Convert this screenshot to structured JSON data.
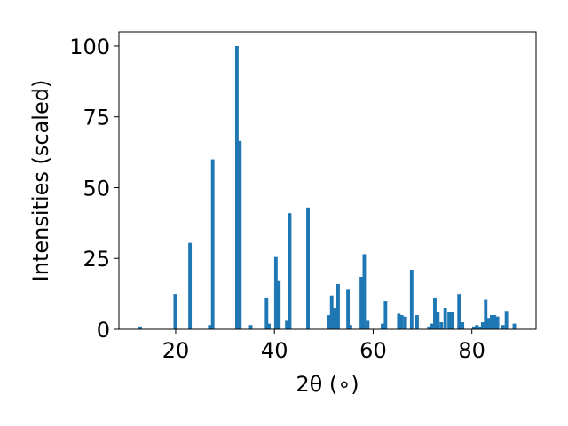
{
  "chart_data": {
    "type": "bar",
    "xlabel": "2θ (∘)",
    "ylabel": "Intensities (scaled)",
    "xlim": [
      8.5,
      93.0
    ],
    "ylim": [
      0,
      105
    ],
    "xticks": [
      20,
      40,
      60,
      80
    ],
    "yticks": [
      0,
      25,
      50,
      75,
      100
    ],
    "bar_width": 0.7,
    "color": "#1f77b4",
    "grid": false,
    "x": [
      12.8,
      19.9,
      22.9,
      26.9,
      27.5,
      32.4,
      33.0,
      35.2,
      38.4,
      38.9,
      40.3,
      40.9,
      42.5,
      43.1,
      46.8,
      51.0,
      51.6,
      52.2,
      52.9,
      54.9,
      55.4,
      57.6,
      58.2,
      58.9,
      61.9,
      62.5,
      65.2,
      65.8,
      66.5,
      67.8,
      68.9,
      71.3,
      71.9,
      72.5,
      73.1,
      73.8,
      74.6,
      75.4,
      76.0,
      77.4,
      78.1,
      80.4,
      81.0,
      81.6,
      82.2,
      82.8,
      83.4,
      84.0,
      84.6,
      85.2,
      86.3,
      87.0,
      88.6
    ],
    "values": [
      1.0,
      12.5,
      30.5,
      1.5,
      60.0,
      100.0,
      66.5,
      1.5,
      11.0,
      2.0,
      25.5,
      17.0,
      3.0,
      41.0,
      43.0,
      5.0,
      12.0,
      7.5,
      16.0,
      14.0,
      1.5,
      18.5,
      26.5,
      3.0,
      2.0,
      10.0,
      5.5,
      5.0,
      4.5,
      21.0,
      5.0,
      1.0,
      2.0,
      11.0,
      6.0,
      2.5,
      7.5,
      6.0,
      6.0,
      12.5,
      2.5,
      1.0,
      1.5,
      1.0,
      2.5,
      10.5,
      4.0,
      5.0,
      5.0,
      4.5,
      1.5,
      6.5,
      2.0
    ]
  }
}
